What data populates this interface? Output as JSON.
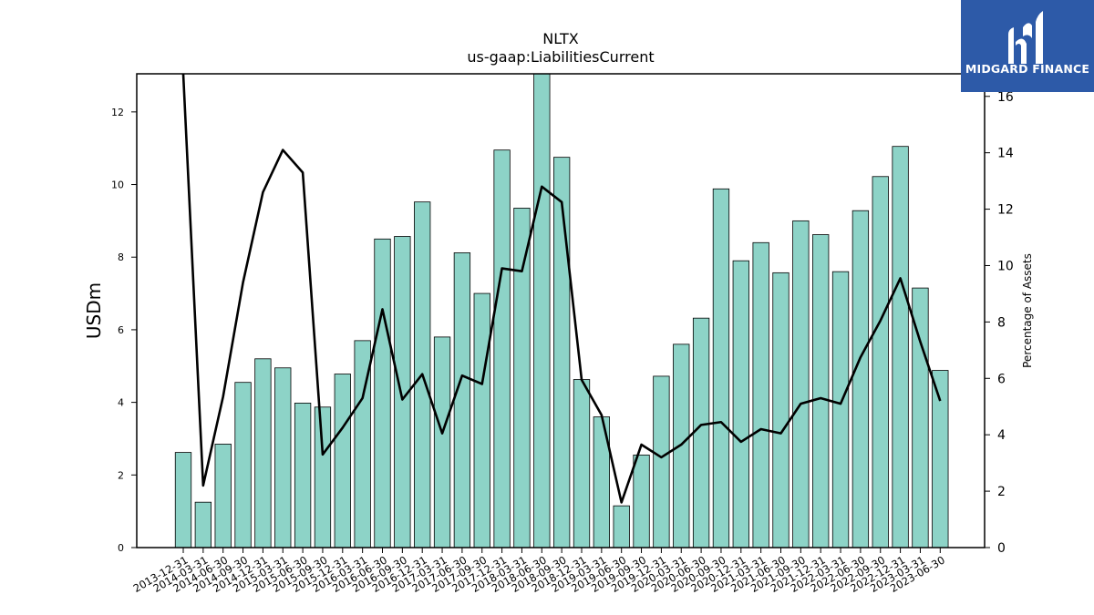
{
  "brand": {
    "name": "MIDGARD FINANCE",
    "logo_icon": "midgard-m-icon",
    "logo_background": "#2d5aa8"
  },
  "chart_data": {
    "type": "bar",
    "title": "NLTX",
    "subtitle": "us-gaap:LiabilitiesCurrent",
    "ylabel": "USDm",
    "y2label": "Percentage of Assets",
    "ylim": [
      0,
      13.05
    ],
    "y2lim": [
      0,
      16.8
    ],
    "yticks": [
      0,
      2,
      4,
      6,
      8,
      10,
      12
    ],
    "y2ticks": [
      0,
      2,
      4,
      6,
      8,
      10,
      12,
      14,
      16
    ],
    "grid": false,
    "bar_color": "#8dd3c7",
    "line_color": "#000000",
    "categories": [
      "2013-12-31",
      "2014-03-31",
      "2014-06-30",
      "2014-09-30",
      "2014-12-31",
      "2015-03-31",
      "2015-06-30",
      "2015-09-30",
      "2015-12-31",
      "2016-03-31",
      "2016-06-30",
      "2016-09-30",
      "2016-12-31",
      "2017-03-31",
      "2017-06-30",
      "2017-09-30",
      "2017-12-31",
      "2018-03-31",
      "2018-06-30",
      "2018-09-30",
      "2018-12-31",
      "2019-03-31",
      "2019-06-30",
      "2019-09-30",
      "2019-12-31",
      "2020-03-31",
      "2020-06-30",
      "2020-09-30",
      "2020-12-31",
      "2021-03-31",
      "2021-06-30",
      "2021-09-30",
      "2021-12-31",
      "2022-03-31",
      "2022-06-30",
      "2022-09-30",
      "2022-12-31",
      "2023-03-31",
      "2023-06-30"
    ],
    "series": [
      {
        "axis": "left",
        "type": "bar",
        "values": [
          2.62,
          1.25,
          2.85,
          4.55,
          5.2,
          4.95,
          3.98,
          3.87,
          4.78,
          5.7,
          8.5,
          8.57,
          9.52,
          5.8,
          8.12,
          7.0,
          10.95,
          9.35,
          13.1,
          10.75,
          4.63,
          3.6,
          1.15,
          2.55,
          4.72,
          5.6,
          6.32,
          9.88,
          7.9,
          8.4,
          7.57,
          9.0,
          8.62,
          7.6,
          9.28,
          10.22,
          11.05,
          7.15,
          4.88
        ]
      },
      {
        "axis": "right",
        "type": "line",
        "values": [
          16.9,
          2.2,
          5.35,
          9.4,
          12.6,
          14.1,
          13.3,
          3.3,
          4.25,
          5.3,
          8.45,
          5.25,
          6.15,
          4.05,
          6.1,
          5.8,
          9.9,
          9.8,
          12.8,
          12.25,
          5.95,
          4.7,
          1.6,
          3.65,
          3.2,
          3.65,
          4.35,
          4.45,
          3.75,
          4.2,
          4.05,
          5.1,
          5.3,
          5.1,
          6.75,
          8.05,
          9.55,
          7.3,
          5.2
        ]
      }
    ]
  }
}
